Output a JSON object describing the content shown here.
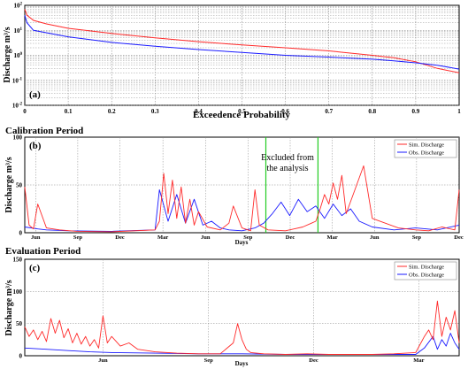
{
  "chart_data": [
    {
      "type": "line",
      "panel_label": "(a)",
      "xlabel": "Exceedence Probability",
      "ylabel": "Discharge m³/s",
      "xlim": [
        0,
        1
      ],
      "ylim_log10": [
        -2,
        2
      ],
      "log_scale_y": true,
      "grid": true,
      "x_ticks": [
        "0",
        "0.1",
        "0.2",
        "0.3",
        "0.4",
        "0.5",
        "0.6",
        "0.7",
        "0.8",
        "0.9",
        "1"
      ],
      "series": [
        {
          "color": "#ff2a2a",
          "x": [
            0,
            0.005,
            0.02,
            0.05,
            0.1,
            0.2,
            0.3,
            0.4,
            0.5,
            0.6,
            0.7,
            0.8,
            0.85,
            0.9,
            0.95,
            1.0
          ],
          "y": [
            70,
            40,
            25,
            18,
            12,
            7.5,
            5,
            3.5,
            2.6,
            2,
            1.5,
            1.0,
            0.8,
            0.55,
            0.3,
            0.2
          ]
        },
        {
          "color": "#1a1aff",
          "x": [
            0,
            0.005,
            0.02,
            0.05,
            0.1,
            0.2,
            0.3,
            0.4,
            0.5,
            0.6,
            0.7,
            0.8,
            0.85,
            0.9,
            0.95,
            1.0
          ],
          "y": [
            40,
            20,
            10,
            8,
            5.5,
            3.3,
            2.3,
            1.7,
            1.3,
            1.0,
            0.85,
            0.7,
            0.6,
            0.5,
            0.4,
            0.28
          ]
        }
      ]
    },
    {
      "type": "line",
      "title": "Calibration Period",
      "panel_label": "(b)",
      "xlabel": "Days",
      "ylabel": "Discharge m³/s",
      "ylim": [
        0,
        100
      ],
      "y_ticks": [
        "0",
        "50",
        "100"
      ],
      "grid": true,
      "legend_position": "top-right",
      "x_ticks": [
        {
          "label": "Jun",
          "x": 0.025
        },
        {
          "label": "Sep",
          "x": 0.122
        },
        {
          "label": "Dec",
          "x": 0.219
        },
        {
          "label": "Mar",
          "x": 0.318
        },
        {
          "label": "Jun",
          "x": 0.416
        },
        {
          "label": "Sep",
          "x": 0.514
        },
        {
          "label": "Dec",
          "x": 0.611
        },
        {
          "label": "Mar",
          "x": 0.708
        },
        {
          "label": "Jun",
          "x": 0.805
        },
        {
          "label": "Sep",
          "x": 0.902
        },
        {
          "label": "Dec",
          "x": 0.999
        }
      ],
      "excluded_region": {
        "x_start": 0.555,
        "x_end": 0.675,
        "text_lines": [
          "Excluded from",
          "the analysis"
        ],
        "color": "#22cc22"
      },
      "series": [
        {
          "name": "Sim. Discharge",
          "color": "#ff2a2a",
          "x": [
            0,
            0.01,
            0.02,
            0.03,
            0.05,
            0.08,
            0.12,
            0.2,
            0.3,
            0.31,
            0.32,
            0.33,
            0.34,
            0.35,
            0.36,
            0.37,
            0.38,
            0.39,
            0.4,
            0.42,
            0.45,
            0.47,
            0.48,
            0.5,
            0.52,
            0.53,
            0.54,
            0.56,
            0.6,
            0.62,
            0.64,
            0.66,
            0.67,
            0.68,
            0.69,
            0.7,
            0.71,
            0.72,
            0.73,
            0.74,
            0.76,
            0.78,
            0.8,
            0.83,
            0.86,
            0.9,
            0.93,
            0.96,
            0.99,
            1.0
          ],
          "y": [
            48,
            8,
            4,
            30,
            5,
            3,
            1.5,
            1,
            3,
            12,
            62,
            20,
            55,
            15,
            48,
            10,
            35,
            8,
            22,
            6,
            3,
            10,
            28,
            5,
            2,
            45,
            8,
            3,
            2,
            4,
            6,
            10,
            12,
            25,
            40,
            30,
            52,
            35,
            60,
            20,
            45,
            70,
            15,
            10,
            5,
            3,
            2,
            6,
            3,
            45
          ]
        },
        {
          "name": "Obs. Discharge",
          "color": "#1a1aff",
          "x": [
            0,
            0.03,
            0.05,
            0.1,
            0.2,
            0.3,
            0.31,
            0.33,
            0.35,
            0.37,
            0.39,
            0.41,
            0.43,
            0.45,
            0.47,
            0.5,
            0.53,
            0.55,
            0.57,
            0.59,
            0.61,
            0.63,
            0.65,
            0.67,
            0.69,
            0.71,
            0.73,
            0.75,
            0.77,
            0.8,
            0.85,
            0.9,
            0.95,
            1.0
          ],
          "y": [
            6,
            4,
            3,
            2,
            1.5,
            3,
            45,
            12,
            40,
            10,
            35,
            8,
            12,
            5,
            3,
            2,
            5,
            10,
            20,
            32,
            18,
            35,
            22,
            28,
            15,
            30,
            18,
            25,
            12,
            6,
            3,
            5,
            3,
            8
          ]
        }
      ]
    },
    {
      "type": "line",
      "title": "Evaluation Period",
      "panel_label": "(c)",
      "xlabel": "Days",
      "ylabel": "Discharge m³/s",
      "ylim": [
        0,
        150
      ],
      "y_ticks": [
        "0",
        "50",
        "100",
        "150"
      ],
      "grid": true,
      "legend_position": "top-right",
      "x_ticks": [
        {
          "label": "Jun",
          "x": 0.18
        },
        {
          "label": "Sep",
          "x": 0.423
        },
        {
          "label": "Dec",
          "x": 0.665
        },
        {
          "label": "Mar",
          "x": 0.907
        }
      ],
      "series": [
        {
          "name": "Sim. Discharge",
          "color": "#ff2a2a",
          "x": [
            0,
            0.01,
            0.02,
            0.03,
            0.04,
            0.05,
            0.06,
            0.07,
            0.08,
            0.09,
            0.1,
            0.11,
            0.12,
            0.13,
            0.14,
            0.15,
            0.16,
            0.17,
            0.18,
            0.19,
            0.2,
            0.22,
            0.24,
            0.26,
            0.3,
            0.35,
            0.4,
            0.45,
            0.48,
            0.49,
            0.5,
            0.51,
            0.52,
            0.55,
            0.6,
            0.65,
            0.7,
            0.75,
            0.8,
            0.85,
            0.9,
            0.92,
            0.93,
            0.94,
            0.95,
            0.96,
            0.97,
            0.98,
            0.99,
            1.0
          ],
          "y": [
            45,
            30,
            40,
            25,
            38,
            22,
            58,
            35,
            55,
            28,
            42,
            20,
            35,
            18,
            30,
            15,
            25,
            12,
            62,
            20,
            30,
            15,
            20,
            10,
            6,
            4,
            3,
            3,
            20,
            50,
            25,
            10,
            5,
            3,
            2,
            3,
            2,
            2,
            2,
            3,
            5,
            30,
            40,
            25,
            85,
            30,
            60,
            40,
            70,
            20
          ]
        },
        {
          "name": "Obs. Discharge",
          "color": "#1a1aff",
          "x": [
            0,
            0.05,
            0.1,
            0.15,
            0.2,
            0.3,
            0.4,
            0.5,
            0.6,
            0.7,
            0.8,
            0.9,
            0.92,
            0.94,
            0.95,
            0.96,
            0.97,
            0.98,
            0.99,
            1.0
          ],
          "y": [
            12,
            10,
            8,
            6,
            5,
            4,
            3,
            3,
            2,
            2,
            2,
            2,
            12,
            30,
            10,
            25,
            15,
            35,
            20,
            10
          ]
        }
      ]
    }
  ],
  "legend": {
    "sim": "Sim. Discharge",
    "obs": "Obs. Discharge"
  }
}
